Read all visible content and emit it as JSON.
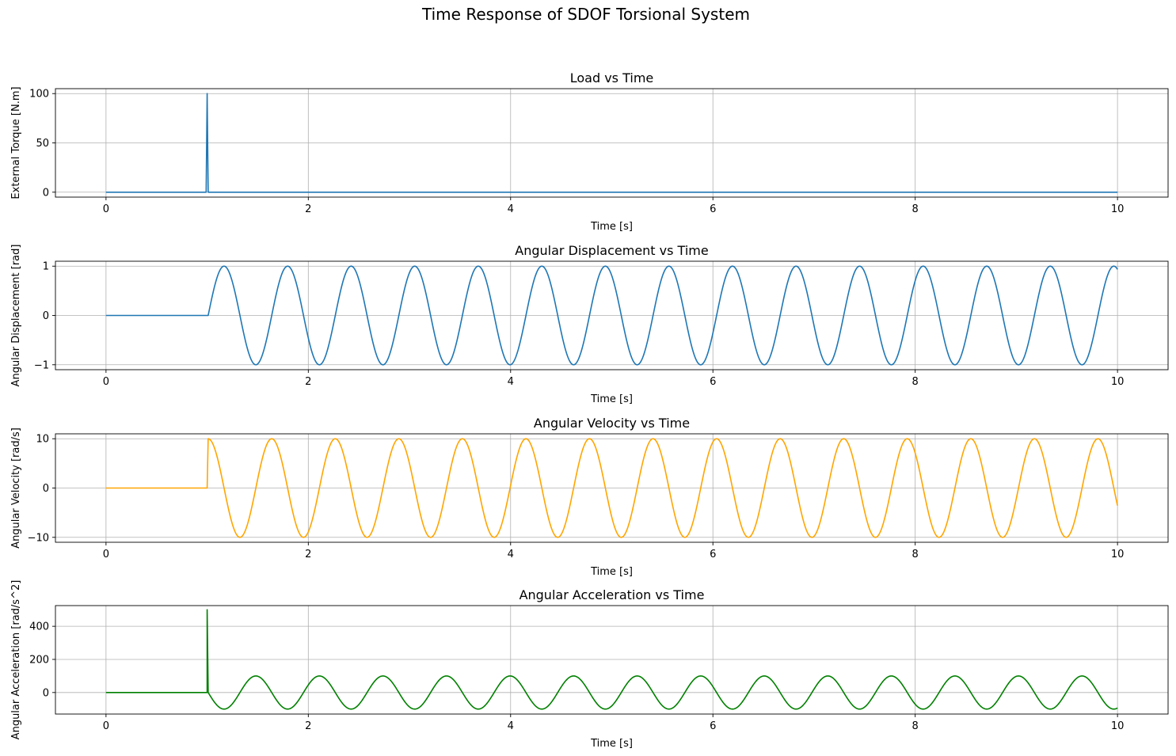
{
  "figure": {
    "title": "Time Response of SDOF Torsional System",
    "grid": true
  },
  "chart_data": [
    {
      "type": "line",
      "title": "Load vs Time",
      "xlabel": "Time [s]",
      "ylabel": "External Torque [N.m]",
      "xlim": [
        -0.5,
        10.5
      ],
      "ylim": [
        -5,
        105
      ],
      "xticks": [
        0,
        2,
        4,
        6,
        8,
        10
      ],
      "xticklabels": [
        "0",
        "2",
        "4",
        "6",
        "8",
        "10"
      ],
      "yticks": [
        0,
        50,
        100
      ],
      "yticklabels": [
        "0",
        "50",
        "100"
      ],
      "series": [
        {
          "color": "#1f77b4",
          "x": [
            0,
            0.99,
            1.0,
            1.01,
            10
          ],
          "y": [
            0,
            0,
            100,
            0,
            0
          ]
        }
      ]
    },
    {
      "type": "line",
      "title": "Angular Displacement vs Time",
      "xlabel": "Time [s]",
      "ylabel": "Angular Displacement [rad]",
      "xlim": [
        -0.5,
        10.5
      ],
      "ylim": [
        -1.1,
        1.1
      ],
      "xticks": [
        0,
        2,
        4,
        6,
        8,
        10
      ],
      "xticklabels": [
        "0",
        "2",
        "4",
        "6",
        "8",
        "10"
      ],
      "yticks": [
        -1,
        0,
        1
      ],
      "yticklabels": [
        "−1",
        "0",
        "1"
      ],
      "series": [
        {
          "color": "#1f77b4",
          "function": "sine",
          "onset": 1.01,
          "amplitude": 1,
          "omega": 10,
          "phase": 0,
          "x_end": 10
        }
      ]
    },
    {
      "type": "line",
      "title": "Angular Velocity vs Time",
      "xlabel": "Time [s]",
      "ylabel": "Angular Velocity [rad/s]",
      "xlim": [
        -0.5,
        10.5
      ],
      "ylim": [
        -11,
        11
      ],
      "xticks": [
        0,
        2,
        4,
        6,
        8,
        10
      ],
      "xticklabels": [
        "0",
        "2",
        "4",
        "6",
        "8",
        "10"
      ],
      "yticks": [
        -10,
        0,
        10
      ],
      "yticklabels": [
        "−10",
        "0",
        "10"
      ],
      "series": [
        {
          "color": "#ffa500",
          "function": "cosine",
          "onset": 1.01,
          "amplitude": 10,
          "omega": 10,
          "phase": 0,
          "x_end": 10
        }
      ]
    },
    {
      "type": "line",
      "title": "Angular Acceleration vs Time",
      "xlabel": "Time [s]",
      "ylabel": "Angular Acceleration [rad/s^2]",
      "xlim": [
        -0.5,
        10.5
      ],
      "ylim": [
        -130,
        525
      ],
      "xticks": [
        0,
        2,
        4,
        6,
        8,
        10
      ],
      "xticklabels": [
        "0",
        "2",
        "4",
        "6",
        "8",
        "10"
      ],
      "yticks": [
        0,
        200,
        400
      ],
      "yticklabels": [
        "0",
        "200",
        "400"
      ],
      "series": [
        {
          "color": "#008000",
          "function": "negsine",
          "onset": 1.01,
          "amplitude": 100,
          "omega": 10,
          "phase": 0,
          "x_end": 10,
          "impulse": {
            "x": 1.0,
            "y": 500
          }
        }
      ]
    }
  ]
}
